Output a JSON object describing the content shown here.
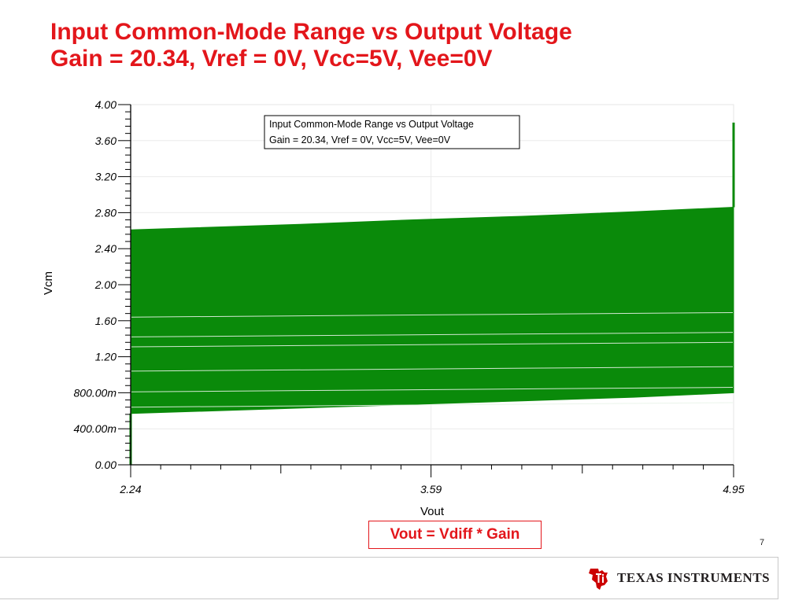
{
  "slide": {
    "title_line1": "Input Common-Mode Range vs Output Voltage",
    "title_line2": "Gain = 20.34, Vref = 0V, Vcc=5V, Vee=0V",
    "formula": "Vout = Vdiff * Gain",
    "page_number": "7"
  },
  "brand": {
    "name": "Texas Instruments",
    "wordmark": "TEXAS INSTRUMENTS",
    "logo_color": "#cc0000",
    "title_color": "#e3161b"
  },
  "chart_data": {
    "type": "area",
    "xlabel": "Vout",
    "ylabel": "Vcm",
    "xlim": [
      2.24,
      4.95
    ],
    "ylim": [
      0.0,
      4.0
    ],
    "x_ticks": [
      2.24,
      3.59,
      4.95
    ],
    "x_tick_labels": [
      "2.24",
      "3.59",
      "4.95"
    ],
    "y_ticks": [
      0.0,
      0.4,
      0.8,
      1.2,
      1.6,
      2.0,
      2.4,
      2.8,
      3.2,
      3.6,
      4.0
    ],
    "y_tick_labels": [
      "0.00",
      "400.00m",
      "800.00m",
      "1.20",
      "1.60",
      "2.00",
      "2.40",
      "2.80",
      "3.20",
      "3.60",
      "4.00"
    ],
    "grid": true,
    "legend_position": "top-center",
    "legend_lines": [
      "Input Common-Mode Range vs Output Voltage",
      "Gain = 20.34, Vref = 0V, Vcc=5V, Vee=0V"
    ],
    "fill_color": "#0a8a0a",
    "series": [
      {
        "x": [
          2.24,
          2.5,
          3.0,
          3.5,
          4.0,
          4.5,
          4.95
        ],
        "upper": [
          2.61,
          2.63,
          2.67,
          2.72,
          2.76,
          2.81,
          2.86
        ],
        "lower": [
          0.57,
          0.59,
          0.63,
          0.67,
          0.71,
          0.75,
          0.8
        ]
      }
    ],
    "edge_spikes": [
      {
        "x": 2.24,
        "y_from": 0.0,
        "y_to": 0.57
      },
      {
        "x": 4.95,
        "y_from": 2.86,
        "y_to": 3.8
      }
    ],
    "white_lines_y": [
      0.64,
      0.81,
      1.04,
      1.31,
      1.42,
      1.64
    ]
  }
}
